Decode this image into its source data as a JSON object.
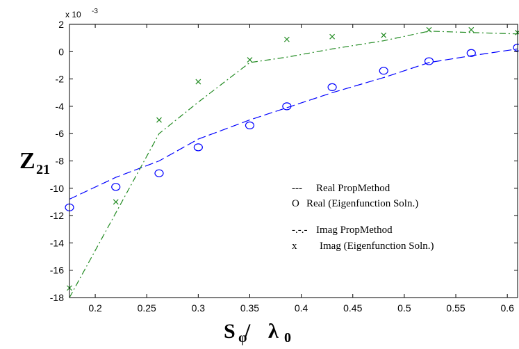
{
  "chart_data": {
    "type": "line",
    "xlim": [
      0.175,
      0.61
    ],
    "ylim": [
      -18,
      2
    ],
    "x_ticks": [
      0.2,
      0.25,
      0.3,
      0.35,
      0.4,
      0.45,
      0.5,
      0.55,
      0.6
    ],
    "x_tick_labels": [
      "0.2",
      "0.25",
      "0.3",
      "0.35",
      "0.4",
      "0.45",
      "0.5",
      "0.55",
      "0.6"
    ],
    "y_ticks": [
      2,
      0,
      -2,
      -4,
      -6,
      -8,
      -10,
      -12,
      -14,
      -16,
      -18
    ],
    "y_tick_labels": [
      "2",
      "0",
      "-2",
      "-4",
      "-6",
      "-8",
      "-10",
      "-12",
      "-14",
      "-16",
      "-18"
    ],
    "y_exponent": {
      "base": "x 10",
      "power": "-3"
    },
    "ylabel": {
      "main": "Z",
      "sub": "21"
    },
    "xlabel": {
      "main": "S",
      "sub1": "φ",
      "slash": " / ",
      "lambda": "λ",
      "sub2": "0"
    },
    "grid": false,
    "legend_position": "center-right",
    "legend": [
      {
        "marker": "---",
        "label": "Real PropMethod"
      },
      {
        "marker": "O",
        "label": "Real (Eigenfunction Soln.)"
      },
      {
        "marker": "-.-.-",
        "label": "Imag PropMethod"
      },
      {
        "marker": "x",
        "label": "Imag (Eigenfunction Soln.)"
      }
    ],
    "series": [
      {
        "style": "dashed",
        "color": "#0000ff",
        "x": [
          0.175,
          0.22,
          0.262,
          0.3,
          0.35,
          0.386,
          0.43,
          0.48,
          0.524,
          0.565,
          0.61
        ],
        "y": [
          -10.8,
          -9.2,
          -8.0,
          -6.4,
          -5.0,
          -4.1,
          -3.0,
          -1.9,
          -0.8,
          -0.3,
          0.2
        ]
      },
      {
        "style": "circles",
        "color": "#0000ff",
        "x": [
          0.175,
          0.22,
          0.262,
          0.3,
          0.35,
          0.386,
          0.43,
          0.48,
          0.524,
          0.565,
          0.61
        ],
        "y": [
          -11.4,
          -9.9,
          -8.9,
          -7.0,
          -5.4,
          -4.0,
          -2.6,
          -1.4,
          -0.7,
          -0.1,
          0.3
        ]
      },
      {
        "style": "dashdot",
        "color": "#228b22",
        "x": [
          0.175,
          0.22,
          0.262,
          0.3,
          0.35,
          0.386,
          0.43,
          0.48,
          0.524,
          0.565,
          0.61
        ],
        "y": [
          -18.0,
          -11.8,
          -6.0,
          -3.7,
          -0.8,
          -0.4,
          0.2,
          0.8,
          1.5,
          1.4,
          1.3
        ]
      },
      {
        "style": "crosses",
        "color": "#228b22",
        "x": [
          0.175,
          0.22,
          0.262,
          0.3,
          0.35,
          0.386,
          0.43,
          0.48,
          0.524,
          0.565,
          0.61
        ],
        "y": [
          -17.3,
          -11.0,
          -5.0,
          -2.2,
          -0.6,
          0.9,
          1.1,
          1.2,
          1.6,
          1.6,
          1.4
        ]
      }
    ]
  }
}
